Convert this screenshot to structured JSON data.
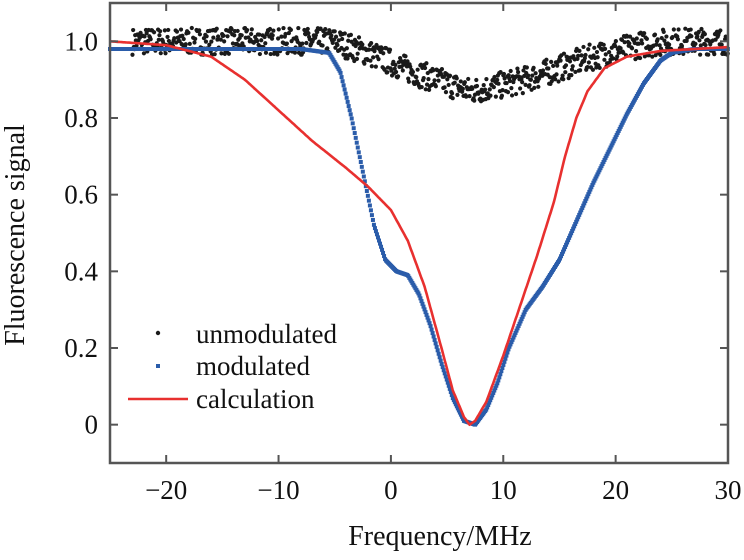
{
  "chart_data": {
    "type": "scatter",
    "xlabel": "Frequency/MHz",
    "ylabel": "Fluorescence signal",
    "xlim": [
      -25,
      30
    ],
    "ylim": [
      -0.1,
      1.1
    ],
    "xticks": [
      -20,
      -10,
      0,
      10,
      20,
      30
    ],
    "xtick_labels": [
      "−20",
      "−10",
      "0",
      "10",
      "20",
      "30"
    ],
    "yticks": [
      0,
      0.2,
      0.4,
      0.6,
      0.8,
      1.0
    ],
    "ytick_labels": [
      "0",
      "0.2",
      "0.4",
      "0.6",
      "0.8",
      "1.0"
    ],
    "grid": false,
    "legend_position": "bottom-left",
    "series": [
      {
        "name": "unmodulated",
        "kind": "scatter",
        "color": "#1a1a1a",
        "x": [
          -23,
          -15,
          -8,
          -5,
          -2,
          2,
          5,
          7,
          9,
          12,
          15,
          18,
          22,
          25,
          30
        ],
        "y": [
          1.0,
          1.0,
          1.0,
          1.0,
          0.97,
          0.92,
          0.89,
          0.87,
          0.88,
          0.9,
          0.93,
          0.96,
          0.99,
          1.0,
          1.0
        ]
      },
      {
        "name": "modulated",
        "kind": "scatter",
        "color": "#2a5caa",
        "x": [
          -25,
          -15,
          -8,
          -5.5,
          -4.5,
          -3.5,
          -2.5,
          -1.5,
          -0.5,
          0.5,
          1.5,
          2.5,
          3.5,
          4.5,
          5.5,
          6.5,
          7.5,
          8.5,
          9.5,
          10.5,
          12,
          13.5,
          15,
          16.5,
          18,
          19.5,
          21,
          22.5,
          24,
          25,
          27,
          30
        ],
        "y": [
          0.98,
          0.98,
          0.98,
          0.97,
          0.92,
          0.8,
          0.66,
          0.52,
          0.43,
          0.4,
          0.39,
          0.34,
          0.26,
          0.16,
          0.07,
          0.01,
          0.0,
          0.04,
          0.11,
          0.2,
          0.3,
          0.36,
          0.43,
          0.53,
          0.63,
          0.72,
          0.81,
          0.89,
          0.95,
          0.97,
          0.98,
          0.98
        ]
      },
      {
        "name": "calculation",
        "kind": "line",
        "color": "#e8302f",
        "x": [
          -25,
          -20,
          -16,
          -13,
          -10,
          -7,
          -4,
          -2,
          0,
          1.5,
          3,
          4.5,
          5.5,
          6.5,
          7,
          7.5,
          8.5,
          10,
          11.5,
          13,
          14.5,
          15.5,
          16.5,
          17.5,
          19,
          21,
          24,
          30
        ],
        "y": [
          1.0,
          0.99,
          0.96,
          0.9,
          0.82,
          0.74,
          0.67,
          0.62,
          0.56,
          0.48,
          0.36,
          0.2,
          0.09,
          0.02,
          0.0,
          0.01,
          0.06,
          0.18,
          0.31,
          0.44,
          0.58,
          0.7,
          0.8,
          0.87,
          0.93,
          0.96,
          0.975,
          0.985
        ]
      }
    ]
  }
}
